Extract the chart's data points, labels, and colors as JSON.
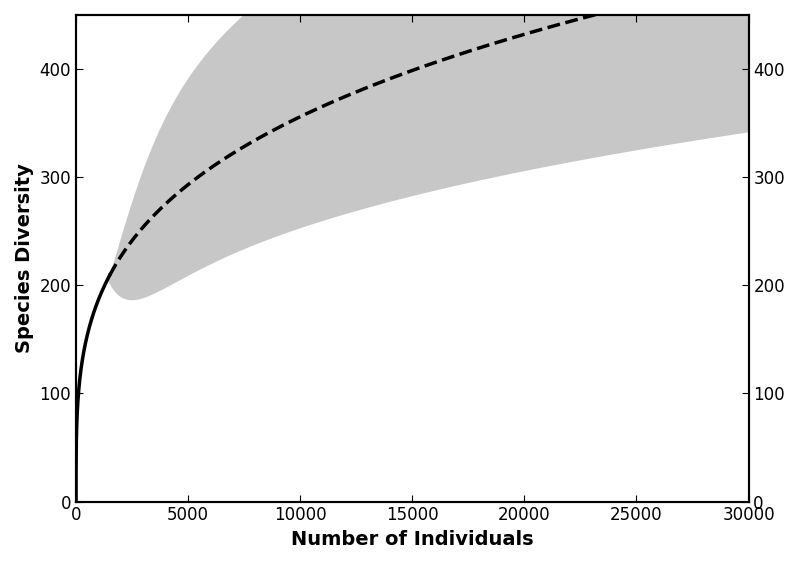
{
  "title": "",
  "xlabel": "Number of Individuals",
  "ylabel": "Species Diversity",
  "xlim": [
    0,
    30000
  ],
  "ylim": [
    0,
    450
  ],
  "xticks": [
    0,
    5000,
    10000,
    15000,
    20000,
    25000,
    30000
  ],
  "yticks": [
    0,
    100,
    200,
    300,
    400
  ],
  "observed_x_end": 1500,
  "curve_a": 27.0,
  "curve_b": 0.28,
  "ci_start_x": 1400,
  "upper_a": 35.0,
  "upper_b": 0.287,
  "lower_a": 20.5,
  "lower_b": 0.273,
  "line_color": "#000000",
  "fill_color": "#aaaaaa",
  "fill_alpha": 0.65,
  "solid_lw": 2.5,
  "dashed_lw": 2.5,
  "xlabel_fontsize": 14,
  "ylabel_fontsize": 14,
  "tick_fontsize": 12,
  "background_color": "#ffffff",
  "spine_lw": 1.5
}
